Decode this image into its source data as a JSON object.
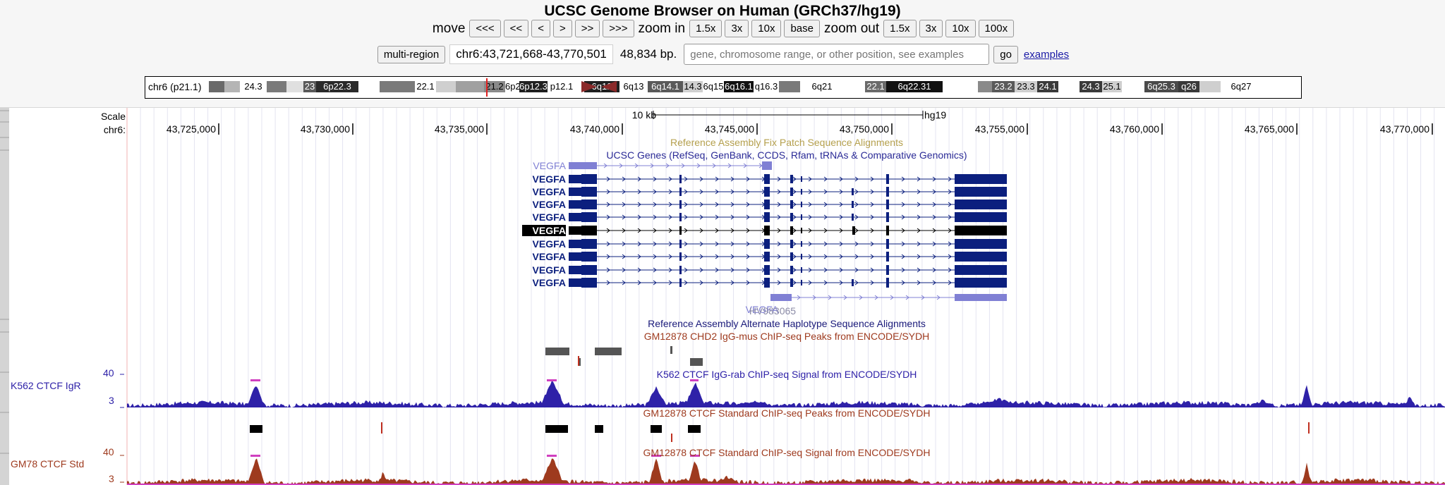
{
  "title": "UCSC Genome Browser on Human (GRCh37/hg19)",
  "nav": {
    "move_label": "move",
    "move_buttons": [
      "<<<",
      "<<",
      "<",
      ">",
      ">>",
      ">>>"
    ],
    "zoom_in_label": "zoom in",
    "zoom_in_buttons": [
      "1.5x",
      "3x",
      "10x",
      "base"
    ],
    "zoom_out_label": "zoom out",
    "zoom_out_buttons": [
      "1.5x",
      "3x",
      "10x",
      "100x"
    ]
  },
  "position": {
    "multi_region": "multi-region",
    "coords": "chr6:43,721,668-43,770,501",
    "bp": "48,834 bp.",
    "search_placeholder": "gene, chromosome range, or other position, see examples",
    "go": "go",
    "examples": "examples"
  },
  "ideogram": {
    "chrom_label": "chr6 (p21.1)",
    "bands": [
      "24.3",
      "23",
      "6p22.3",
      "22.1",
      "21.2",
      "6p21.1",
      "6p12.3",
      "p12.1",
      "6q12",
      "6q13",
      "6q14.1",
      "14.3",
      "6q15",
      "6q16.1",
      "q16.3",
      "6q21",
      "22.1",
      "6q22.31",
      "23.2",
      "23.3",
      "24.1",
      "24.3",
      "25.1",
      "6q25.3",
      "q26",
      "6q27"
    ]
  },
  "scale": {
    "scale_label": "Scale",
    "chr_label": "chr6:",
    "bar_label": "10 kb",
    "assembly": "hg19",
    "ticks": [
      "43,725,000",
      "43,730,000",
      "43,735,000",
      "43,740,000",
      "43,745,000",
      "43,750,000",
      "43,755,000",
      "43,760,000",
      "43,765,000",
      "43,770,000"
    ]
  },
  "tracks": {
    "fix_patch": "Reference Assembly Fix Patch Sequence Alignments",
    "ucsc_genes": "UCSC Genes (RefSeq, GenBank, CCDS, Rfam, tRNAs & Comparative Genomics)",
    "gene_name": "VEGFA",
    "hv": "HV983065",
    "alt_haplo": "Reference Assembly Alternate Haplotype Sequence Alignments",
    "chd2_peaks": "GM12878 CHD2 IgG-mus ChIP-seq Peaks from ENCODE/SYDH",
    "k562_signal": "K562 CTCF IgG-rab ChIP-seq Signal from ENCODE/SYDH",
    "gm_peaks": "GM12878 CTCF Standard ChIP-seq Peaks from ENCODE/SYDH",
    "gm_signal": "GM12878 CTCF Standard ChIP-seq Signal from ENCODE/SYDH",
    "k562_side": "K562 CTCF IgR",
    "gm_side": "GM78 CTCF Std",
    "ymax": "40",
    "ymin": "3"
  },
  "colors": {
    "gene": "#0b1f7e",
    "gene_light": "#8080d4",
    "k562": "#2e21a8",
    "gm": "#9e3a1e",
    "fix_patch": "#b5a04e"
  }
}
